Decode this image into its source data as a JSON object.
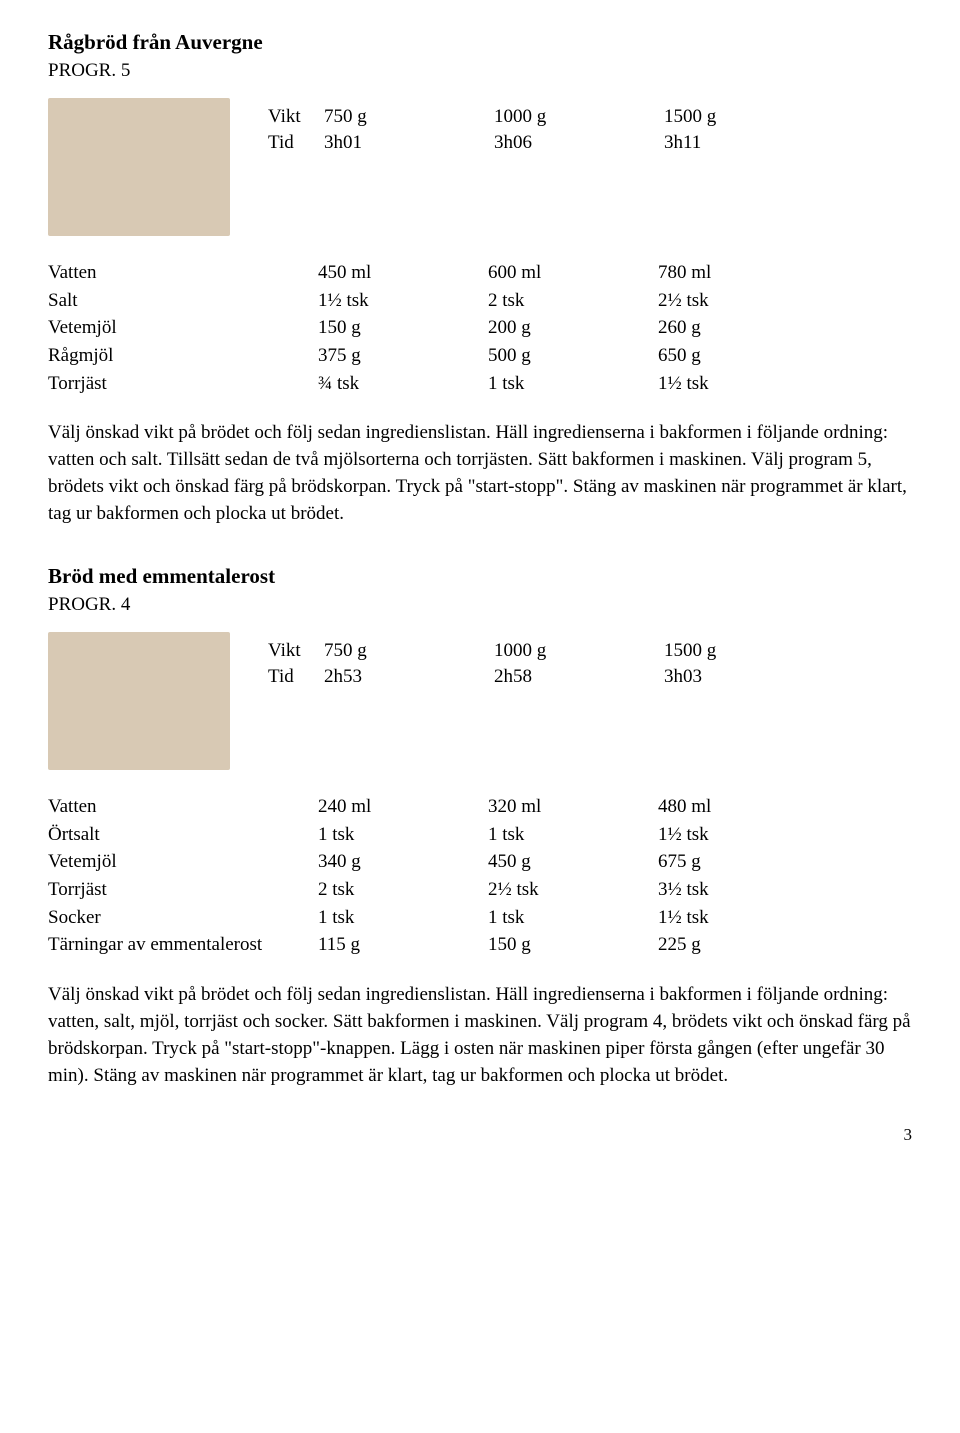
{
  "recipe1": {
    "title": "Rågbröd från Auvergne",
    "progr": "PROGR. 5",
    "vt": {
      "labels": [
        "Vikt",
        "Tid"
      ],
      "rows": [
        [
          "750 g",
          "1000 g",
          "1500 g"
        ],
        [
          "3h01",
          "3h06",
          "3h11"
        ]
      ]
    },
    "ing": {
      "labels": [
        "Vatten",
        "Salt",
        "Vetemjöl",
        "Rågmjöl",
        "Torrjäst"
      ],
      "rows": [
        [
          "450 ml",
          "600 ml",
          "780 ml"
        ],
        [
          "1½ tsk",
          "2 tsk",
          "2½ tsk"
        ],
        [
          "150 g",
          "200 g",
          "260 g"
        ],
        [
          "375 g",
          "500 g",
          "650 g"
        ],
        [
          "¾ tsk",
          "1 tsk",
          "1½ tsk"
        ]
      ]
    },
    "inst": "Välj önskad vikt på brödet och följ sedan ingredienslistan. Häll ingredienserna i bakformen i följande ordning: vatten och salt. Tillsätt sedan de två mjölsorterna och torrjästen. Sätt bakformen i maskinen. Välj program 5, brödets vikt och önskad färg på brödskorpan. Tryck på \"start-stopp\". Stäng av maskinen när programmet är klart, tag ur bakformen och plocka ut brödet."
  },
  "recipe2": {
    "title": "Bröd med emmentalerost",
    "progr": "PROGR. 4",
    "vt": {
      "labels": [
        "Vikt",
        "Tid"
      ],
      "rows": [
        [
          "750 g",
          "1000 g",
          "1500 g"
        ],
        [
          "2h53",
          "2h58",
          "3h03"
        ]
      ]
    },
    "ing": {
      "labels": [
        "Vatten",
        "Örtsalt",
        "Vetemjöl",
        "Torrjäst",
        "Socker",
        "Tärningar av emmentalerost"
      ],
      "rows": [
        [
          "240 ml",
          "320 ml",
          "480 ml"
        ],
        [
          "1 tsk",
          "1 tsk",
          "1½ tsk"
        ],
        [
          "340 g",
          "450 g",
          "675 g"
        ],
        [
          "2 tsk",
          "2½ tsk",
          "3½ tsk"
        ],
        [
          "1 tsk",
          "1 tsk",
          "1½ tsk"
        ],
        [
          "115 g",
          "150 g",
          "225 g"
        ]
      ]
    },
    "inst": "Välj önskad vikt på brödet och följ sedan ingredienslistan. Häll ingredienserna i bakformen i följande ordning: vatten, salt, mjöl, torrjäst och socker. Sätt bakformen i maskinen. Välj program 4, brödets vikt och önskad färg på brödskorpan. Tryck på \"start-stopp\"-knappen. Lägg i osten när maskinen piper första gången (efter ungefär 30 min). Stäng av maskinen när programmet är klart, tag ur bakformen och plocka ut brödet."
  },
  "pagenum": "3"
}
